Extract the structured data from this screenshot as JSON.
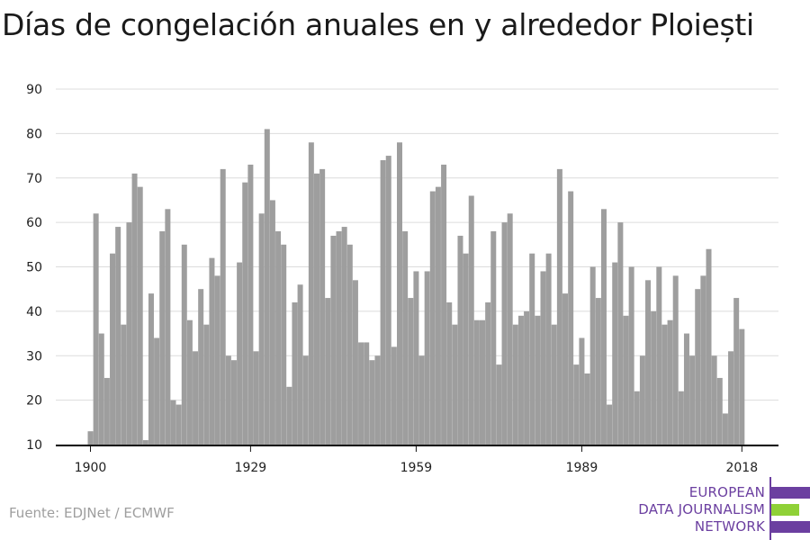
{
  "title": "Días de congelación anuales en y alrededor Ploiești",
  "source": "Fuente: EDJNet / ECMWF",
  "logo": {
    "lines": [
      "EUROPEAN",
      "DATA JOURNALISM",
      "NETWORK"
    ],
    "colors": {
      "purple": "#6b3fa0",
      "green": "#8fd137"
    }
  },
  "chart_data": {
    "type": "bar",
    "title": "Días de congelación anuales en y alrededor Ploiești",
    "xlabel": "",
    "ylabel": "",
    "ylim": [
      10,
      90
    ],
    "yticks": [
      10,
      20,
      30,
      40,
      50,
      60,
      70,
      80,
      90
    ],
    "xticks": [
      1900,
      1929,
      1959,
      1989,
      2018
    ],
    "grid": true,
    "bar_color": "#9e9e9e",
    "x": [
      1900,
      1901,
      1902,
      1903,
      1904,
      1905,
      1906,
      1907,
      1908,
      1909,
      1910,
      1911,
      1912,
      1913,
      1914,
      1915,
      1916,
      1917,
      1918,
      1919,
      1920,
      1921,
      1922,
      1923,
      1924,
      1925,
      1926,
      1927,
      1928,
      1929,
      1930,
      1931,
      1932,
      1933,
      1934,
      1935,
      1936,
      1937,
      1938,
      1939,
      1940,
      1941,
      1942,
      1943,
      1944,
      1945,
      1946,
      1947,
      1948,
      1949,
      1950,
      1951,
      1952,
      1953,
      1954,
      1955,
      1956,
      1957,
      1958,
      1959,
      1960,
      1961,
      1962,
      1963,
      1964,
      1965,
      1966,
      1967,
      1968,
      1969,
      1970,
      1971,
      1972,
      1973,
      1974,
      1975,
      1976,
      1977,
      1978,
      1979,
      1980,
      1981,
      1982,
      1983,
      1984,
      1985,
      1986,
      1987,
      1988,
      1989,
      1990,
      1991,
      1992,
      1993,
      1994,
      1995,
      1996,
      1997,
      1998,
      1999,
      2000,
      2001,
      2002,
      2003,
      2004,
      2005,
      2006,
      2007,
      2008,
      2009,
      2010,
      2011,
      2012,
      2013,
      2014,
      2015,
      2016,
      2017,
      2018
    ],
    "values": [
      13,
      62,
      35,
      25,
      53,
      59,
      37,
      60,
      71,
      68,
      11,
      44,
      34,
      58,
      63,
      20,
      19,
      55,
      38,
      31,
      45,
      37,
      52,
      48,
      72,
      30,
      29,
      51,
      69,
      73,
      31,
      62,
      81,
      65,
      58,
      55,
      23,
      42,
      46,
      30,
      78,
      71,
      72,
      43,
      57,
      58,
      59,
      55,
      47,
      33,
      33,
      29,
      30,
      74,
      75,
      32,
      78,
      58,
      43,
      49,
      30,
      49,
      67,
      68,
      73,
      42,
      37,
      57,
      53,
      66,
      38,
      38,
      42,
      58,
      28,
      60,
      62,
      37,
      39,
      40,
      53,
      39,
      49,
      53,
      37,
      72,
      44,
      67,
      28,
      34,
      26,
      50,
      43,
      63,
      19,
      51,
      60,
      39,
      50,
      22,
      30,
      47,
      40,
      50,
      37,
      38,
      48,
      22,
      35,
      30,
      45,
      48,
      54,
      30,
      25,
      17,
      31,
      43,
      36
    ]
  }
}
